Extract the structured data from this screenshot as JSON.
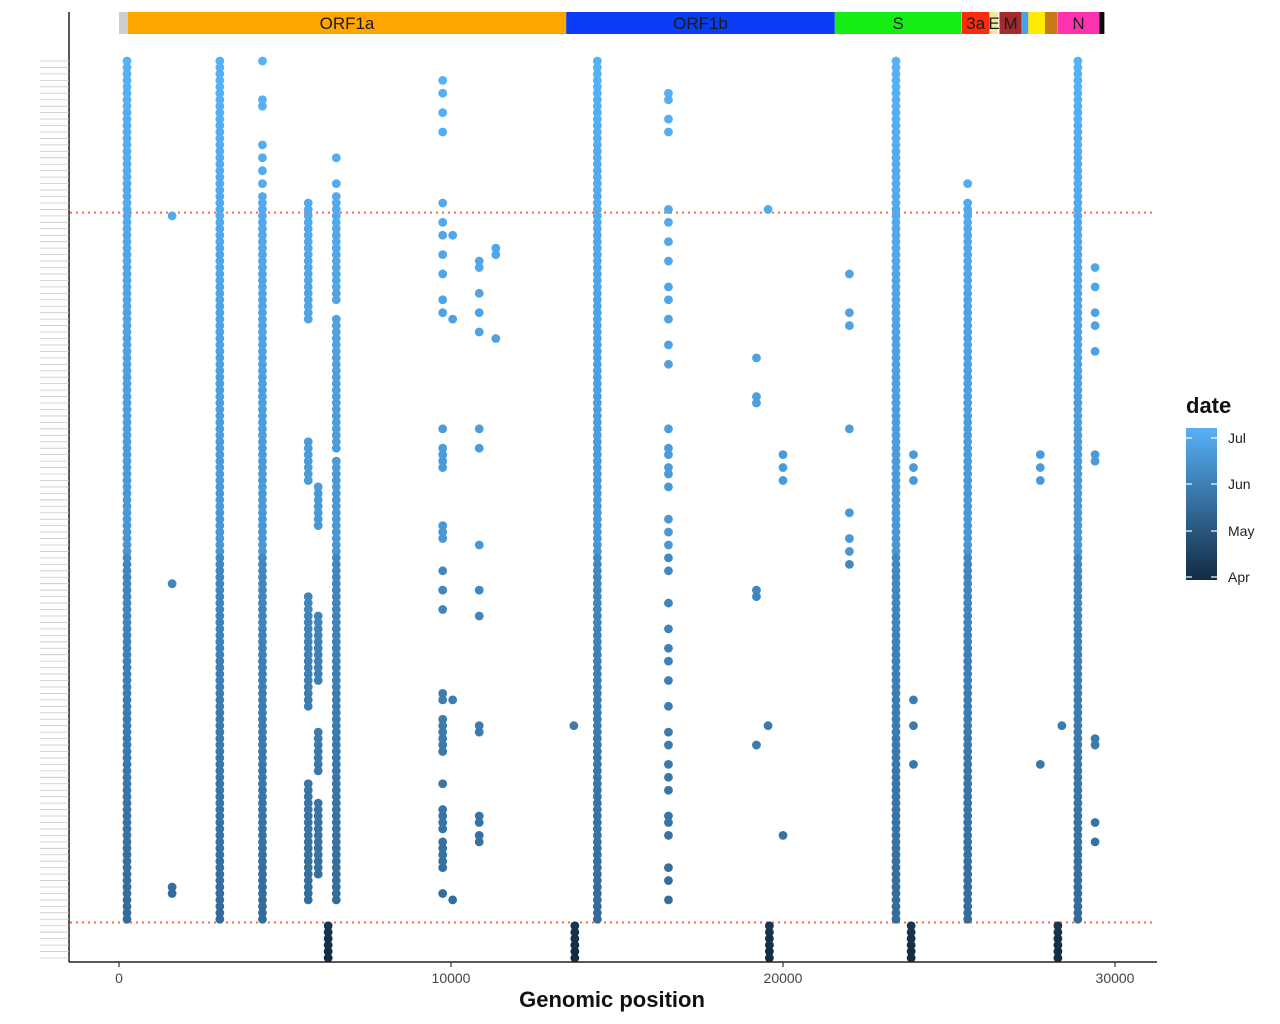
{
  "chart_data": {
    "type": "scatter",
    "xlabel": "Genomic position",
    "xlim": [
      0,
      30500
    ],
    "x_ticks": [
      0,
      10000,
      20000,
      30000
    ],
    "x_tick_labels": [
      "0",
      "10000",
      "20000",
      "30000"
    ],
    "sample_count": 140,
    "boundary_rows": [
      23.5,
      133.5
    ],
    "boundary_color": "#f26b4a",
    "genome_track": [
      {
        "name": "",
        "start": 0,
        "end": 265,
        "color": "#cfcfcf"
      },
      {
        "name": "ORF1a",
        "start": 265,
        "end": 13470,
        "color": "#ffa500"
      },
      {
        "name": "ORF1b",
        "start": 13470,
        "end": 21560,
        "color": "#0a3cf5"
      },
      {
        "name": "S",
        "start": 21560,
        "end": 25380,
        "color": "#14ee14"
      },
      {
        "name": "3a",
        "start": 25390,
        "end": 26220,
        "color": "#ff2a0a"
      },
      {
        "name": "E",
        "start": 26240,
        "end": 26470,
        "color": "#f4e8a0"
      },
      {
        "name": "M",
        "start": 26520,
        "end": 27190,
        "color": "#a52a2a"
      },
      {
        "name": "",
        "start": 27200,
        "end": 27390,
        "color": "#4aa0e8"
      },
      {
        "name": "",
        "start": 27390,
        "end": 27890,
        "color": "#ffeb00"
      },
      {
        "name": "",
        "start": 27890,
        "end": 28260,
        "color": "#c97a18"
      },
      {
        "name": "N",
        "start": 28270,
        "end": 29530,
        "color": "#ff33b2"
      },
      {
        "name": "",
        "start": 29530,
        "end": 29680,
        "color": "#0a0a0a"
      }
    ],
    "mutations": [
      {
        "pos": 241,
        "rows": [
          [
            0,
            133
          ]
        ]
      },
      {
        "pos": 3037,
        "rows": [
          [
            0,
            133
          ]
        ]
      },
      {
        "pos": 14408,
        "rows": [
          [
            0,
            133
          ]
        ]
      },
      {
        "pos": 23403,
        "rows": [
          [
            0,
            133
          ]
        ]
      },
      {
        "pos": 28881,
        "rows": [
          [
            0,
            133
          ]
        ]
      },
      {
        "pos": 4321,
        "rows": [
          0,
          6,
          7,
          13,
          15,
          17,
          19,
          [
            21,
            133
          ]
        ]
      },
      {
        "pos": 6545,
        "rows": [
          15,
          19,
          [
            21,
            37
          ],
          [
            40,
            60
          ],
          [
            62,
            130
          ]
        ]
      },
      {
        "pos": 5700,
        "rows": [
          [
            22,
            40
          ],
          [
            59,
            65
          ],
          [
            83,
            100
          ],
          [
            112,
            130
          ]
        ]
      },
      {
        "pos": 6000,
        "rows": [
          [
            66,
            72
          ],
          [
            86,
            96
          ],
          [
            104,
            110
          ],
          [
            115,
            126
          ]
        ]
      },
      {
        "pos": 9750,
        "rows": [
          3,
          5,
          8,
          11,
          22,
          25,
          27,
          30,
          33,
          37,
          39,
          57,
          [
            60,
            63
          ],
          [
            72,
            74
          ],
          79,
          82,
          85,
          98,
          99,
          [
            102,
            107
          ],
          112,
          [
            116,
            119
          ],
          [
            121,
            125
          ],
          129
        ]
      },
      {
        "pos": 10050,
        "rows": [
          27,
          40,
          99,
          130
        ]
      },
      {
        "pos": 10850,
        "rows": [
          31,
          32,
          36,
          39,
          42,
          57,
          60,
          75,
          82,
          86,
          103,
          104,
          117,
          118,
          120,
          121
        ]
      },
      {
        "pos": 11350,
        "rows": [
          29,
          30,
          43
        ]
      },
      {
        "pos": 1600,
        "rows": [
          24,
          81,
          128,
          129
        ]
      },
      {
        "pos": 16550,
        "rows": [
          5,
          6,
          9,
          11,
          23,
          25,
          28,
          31,
          35,
          37,
          40,
          44,
          47,
          57,
          60,
          61,
          63,
          64,
          66,
          71,
          73,
          75,
          77,
          79,
          84,
          88,
          91,
          93,
          96,
          100,
          104,
          106,
          109,
          111,
          113,
          117,
          118,
          120,
          125,
          127,
          130
        ]
      },
      {
        "pos": 22000,
        "rows": [
          33,
          39,
          41,
          57,
          70,
          74,
          76,
          78
        ]
      },
      {
        "pos": 25563,
        "rows": [
          19,
          [
            22,
            133
          ]
        ]
      },
      {
        "pos": 29400,
        "rows": [
          32,
          35,
          39,
          41,
          45,
          61,
          62,
          105,
          106,
          118,
          121
        ]
      },
      {
        "pos": 19200,
        "rows": [
          46,
          52,
          53,
          82,
          83,
          106
        ]
      },
      {
        "pos": 19550,
        "rows": [
          23,
          103
        ]
      },
      {
        "pos": 20000,
        "rows": [
          61,
          63,
          65,
          120
        ]
      },
      {
        "pos": 23929,
        "rows": [
          61,
          63,
          65,
          99,
          103,
          109
        ]
      },
      {
        "pos": 27750,
        "rows": [
          61,
          63,
          65,
          109
        ]
      },
      {
        "pos": 28400,
        "rows": [
          103
        ]
      },
      {
        "pos": 13700,
        "rows": [
          103
        ]
      },
      {
        "pos": 6300,
        "rows": [
          [
            134,
            139
          ]
        ]
      },
      {
        "pos": 13730,
        "rows": [
          [
            134,
            139
          ]
        ]
      },
      {
        "pos": 19590,
        "rows": [
          [
            134,
            139
          ]
        ]
      },
      {
        "pos": 23860,
        "rows": [
          [
            134,
            139
          ]
        ]
      },
      {
        "pos": 28280,
        "rows": [
          [
            134,
            139
          ]
        ]
      }
    ],
    "legend": {
      "title": "date",
      "labels": [
        "Jul",
        "Jun",
        "May",
        "Apr"
      ],
      "color_high": "#56b1f7",
      "color_low": "#132b43"
    }
  }
}
